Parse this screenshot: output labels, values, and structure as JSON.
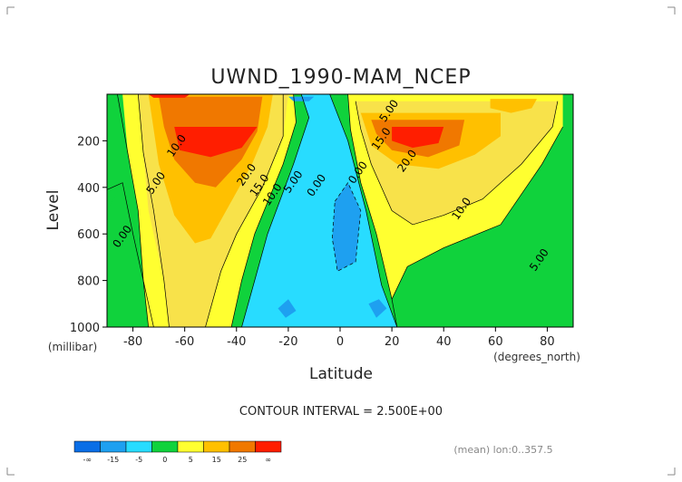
{
  "chart_data": {
    "type": "contour",
    "title": "UWND_1990-MAM_NCEP",
    "xlabel": "Latitude",
    "ylabel": "Level",
    "x_units": "(degrees_north)",
    "y_units": "(millibar)",
    "xlim": [
      -90,
      90
    ],
    "ylim": [
      1000,
      0
    ],
    "x_ticks": [
      -80,
      -60,
      -40,
      -20,
      0,
      20,
      40,
      60,
      80
    ],
    "y_ticks": [
      200,
      400,
      600,
      800,
      1000
    ],
    "contour_interval_text": "CONTOUR INTERVAL = 2.500E+00",
    "footer_text": "(mean) lon:0..357.5",
    "contour_labels": [
      {
        "text": "10.0",
        "x": -62,
        "y": 230
      },
      {
        "text": "5.00",
        "x": -70,
        "y": 390
      },
      {
        "text": "0.00",
        "x": -83,
        "y": 620
      },
      {
        "text": "20.0",
        "x": -35,
        "y": 355
      },
      {
        "text": "15.0",
        "x": -30,
        "y": 400
      },
      {
        "text": "10.0",
        "x": -25,
        "y": 440
      },
      {
        "text": "5.00",
        "x": -17,
        "y": 385
      },
      {
        "text": "0.00",
        "x": -8,
        "y": 400
      },
      {
        "text": "0.00",
        "x": 8,
        "y": 345
      },
      {
        "text": "5.00",
        "x": 20,
        "y": 80
      },
      {
        "text": "15.0",
        "x": 17,
        "y": 200
      },
      {
        "text": "20.0",
        "x": 27,
        "y": 295
      },
      {
        "text": "10.0",
        "x": 48,
        "y": 500
      },
      {
        "text": "5.00",
        "x": 78,
        "y": 720
      }
    ],
    "colorbar": {
      "colors": [
        "#0a6ee6",
        "#1ea0f0",
        "#28dcff",
        "#10d23c",
        "#ffff30",
        "#ffc000",
        "#f07800",
        "#ff1e00"
      ],
      "labels": [
        "-∞",
        "-15",
        "-5",
        "0",
        "5",
        "15",
        "25",
        "∞"
      ]
    },
    "fill_colors": {
      "c_lt_m5": "#1ea0f0",
      "c_m5_0": "#28dcff",
      "c_0_5": "#10d23c",
      "c_5_10": "#ffff30",
      "c_10_15": "#f8e24a",
      "c_15_20": "#ffc000",
      "c_20_25": "#f07800",
      "c_gt_25": "#ff1e00"
    }
  }
}
